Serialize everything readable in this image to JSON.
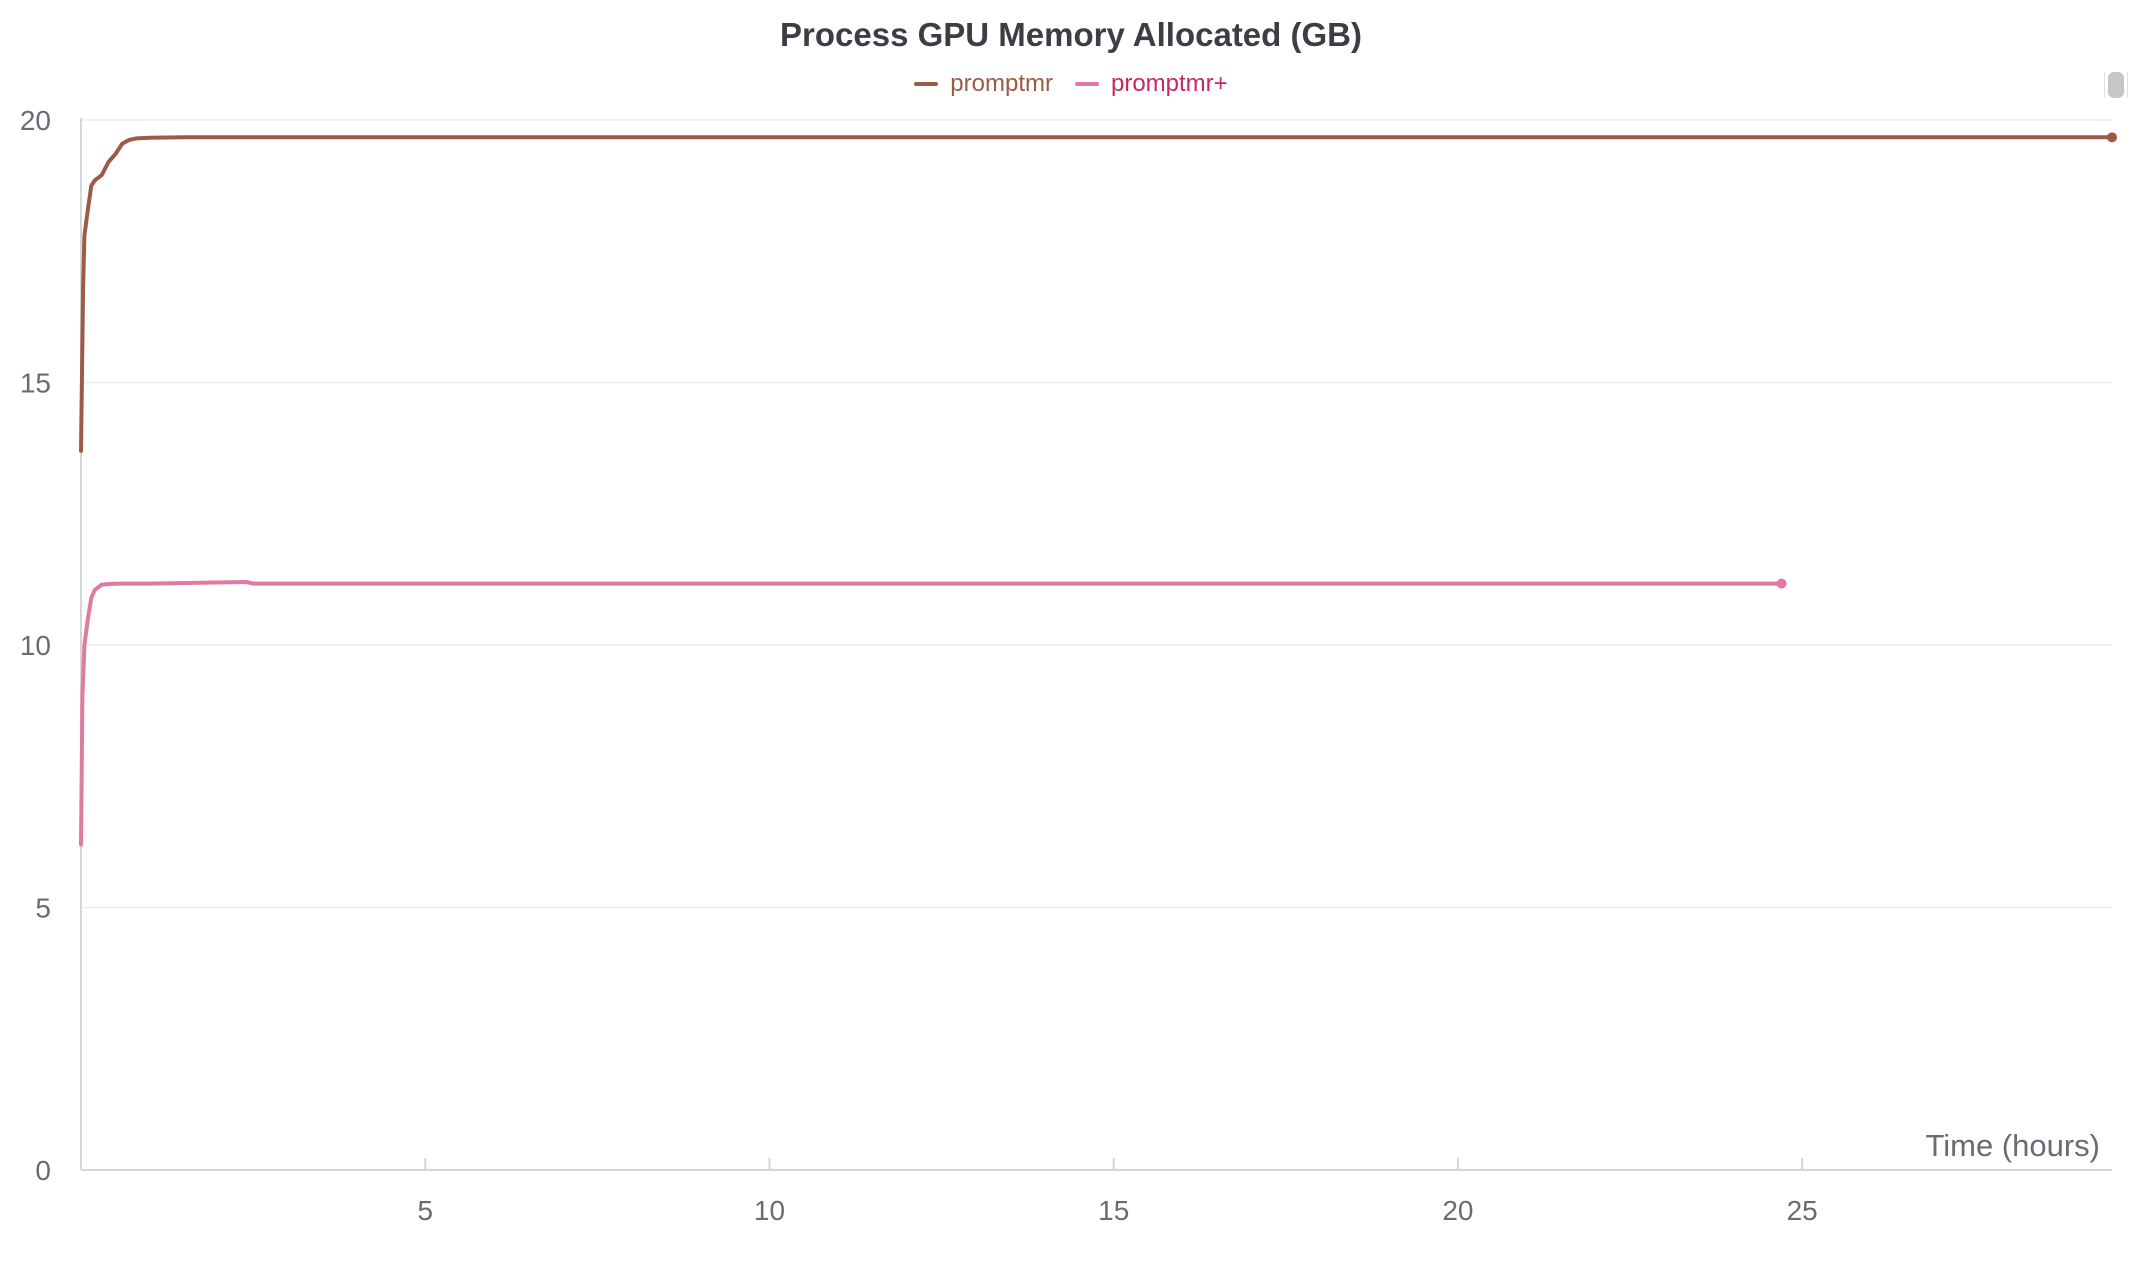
{
  "chart_data": {
    "type": "line",
    "title": "Process GPU Memory Allocated (GB)",
    "xlabel": "Time (hours)",
    "ylabel": "",
    "xlim": [
      0,
      29.5
    ],
    "ylim": [
      0,
      20
    ],
    "xticks": [
      5,
      10,
      15,
      20,
      25
    ],
    "yticks": [
      0,
      5,
      10,
      15,
      20
    ],
    "grid": true,
    "legend_position": "top-center",
    "series": [
      {
        "name": "promptmr",
        "color": "#9c5a47",
        "legend_text_color": "#9c5a47",
        "x": [
          0.0,
          0.03,
          0.05,
          0.1,
          0.15,
          0.2,
          0.25,
          0.3,
          0.4,
          0.5,
          0.6,
          0.7,
          0.8,
          1.0,
          1.5,
          3.0,
          10.0,
          20.0,
          29.5
        ],
        "y": [
          13.7,
          16.8,
          17.8,
          18.3,
          18.75,
          18.85,
          18.9,
          18.95,
          19.2,
          19.35,
          19.55,
          19.62,
          19.65,
          19.66,
          19.67,
          19.67,
          19.67,
          19.67,
          19.67
        ]
      },
      {
        "name": "promptmr+",
        "color": "#e07aa3",
        "legend_text_color": "#c7285f",
        "x": [
          0.0,
          0.02,
          0.05,
          0.1,
          0.15,
          0.2,
          0.3,
          0.5,
          1.0,
          2.4,
          2.5,
          5.0,
          10.0,
          15.0,
          20.0,
          24.7
        ],
        "y": [
          6.2,
          9.0,
          10.0,
          10.5,
          10.9,
          11.05,
          11.15,
          11.17,
          11.17,
          11.2,
          11.17,
          11.17,
          11.17,
          11.17,
          11.17,
          11.17
        ]
      }
    ]
  }
}
